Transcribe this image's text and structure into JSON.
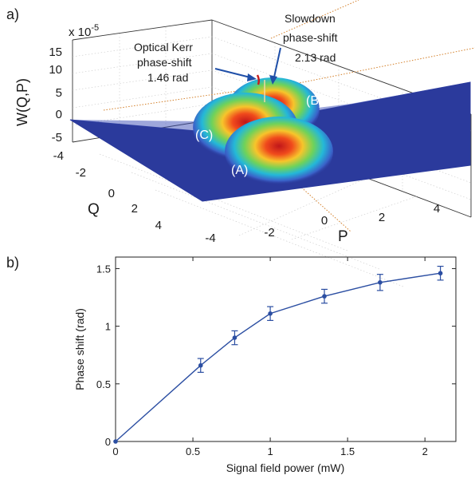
{
  "panel_a": {
    "label": "a)",
    "zlabel": "W(Q,P)",
    "exponent": "x 10",
    "exponent_power": "-5",
    "xlabel": "P",
    "ylabel": "Q",
    "z_ticks": [
      "15",
      "10",
      "5",
      "0",
      "-5"
    ],
    "q_ticks": [
      "-4",
      "-2",
      "0",
      "2",
      "4"
    ],
    "p_ticks": [
      "-4",
      "-2",
      "0",
      "2",
      "4"
    ],
    "peaks": [
      "(A)",
      "(B)",
      "(C)"
    ],
    "annotations": {
      "kerr": [
        "Optical Kerr",
        "phase-shift",
        "1.46 rad"
      ],
      "slowdown": [
        "Slowdown",
        "phase-shift",
        "2.13 rad"
      ]
    },
    "colors": {
      "surface_base": "#2b3a9c",
      "peak_top": "#c81e1e",
      "pointer": "#1f4fa8"
    }
  },
  "panel_b": {
    "label": "b)",
    "line_color": "#2b4ea2"
  },
  "chart_data": {
    "type": "line",
    "title": "",
    "xlabel": "Signal field power (mW)",
    "ylabel": "Phase shift (rad)",
    "xlim": [
      0,
      2.2
    ],
    "ylim": [
      0,
      1.6
    ],
    "x_ticks": [
      0,
      0.5,
      1,
      1.5,
      2
    ],
    "y_ticks": [
      0,
      0.5,
      1,
      1.5
    ],
    "x_tick_labels": [
      "0",
      "0.5",
      "1",
      "1.5",
      "2"
    ],
    "y_tick_labels": [
      "0",
      "0.5",
      "1",
      "1.5"
    ],
    "grid": false,
    "series": [
      {
        "x": [
          0,
          0.55,
          0.77,
          1.0,
          1.35,
          1.71,
          2.1
        ],
        "y": [
          0,
          0.66,
          0.9,
          1.11,
          1.26,
          1.38,
          1.46
        ],
        "err": [
          0,
          0.06,
          0.06,
          0.06,
          0.06,
          0.07,
          0.06
        ]
      }
    ]
  }
}
